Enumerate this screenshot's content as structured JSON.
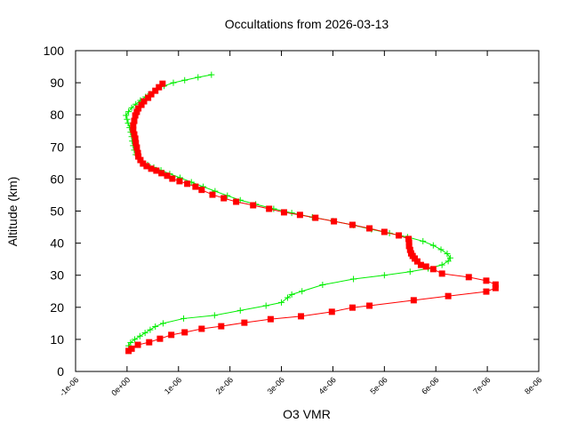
{
  "chart_data": {
    "type": "line",
    "title": "Occultations from 2026-03-13",
    "xlabel": "O3 VMR",
    "ylabel": "Altitude (km)",
    "xlim": [
      -1e-06,
      8e-06
    ],
    "ylim": [
      0,
      100
    ],
    "x_ticks": [
      "-1e-06",
      "0e+00",
      "1e-06",
      "2e-06",
      "3e-06",
      "4e-06",
      "5e-06",
      "6e-06",
      "7e-06",
      "8e-06"
    ],
    "x_tick_values": [
      -1e-06,
      0,
      1e-06,
      2e-06,
      3e-06,
      4e-06,
      5e-06,
      6e-06,
      7e-06,
      8e-06
    ],
    "y_ticks": [
      "0",
      "10",
      "20",
      "30",
      "40",
      "50",
      "60",
      "70",
      "80",
      "90",
      "100"
    ],
    "y_tick_values": [
      0,
      10,
      20,
      30,
      40,
      50,
      60,
      70,
      80,
      90,
      100
    ],
    "grid": false,
    "x_unit_scale": 1e-06,
    "series": [
      {
        "color": "#ff0000",
        "marker": "square",
        "x": [
          0.03,
          0.09,
          0.21,
          0.43,
          0.64,
          0.86,
          1.12,
          1.45,
          1.83,
          2.28,
          2.79,
          3.38,
          3.98,
          4.38,
          4.71,
          5.57,
          6.24,
          6.98,
          7.16,
          7.16,
          6.98,
          6.64,
          6.12,
          5.95,
          5.81,
          5.71,
          5.64,
          5.59,
          5.55,
          5.52,
          5.5,
          5.48,
          5.48,
          5.47,
          5.28,
          5.0,
          4.71,
          4.38,
          4.02,
          3.66,
          3.36,
          3.05,
          2.76,
          2.45,
          2.12,
          1.88,
          1.66,
          1.45,
          1.33,
          1.17,
          1.02,
          0.88,
          0.78,
          0.67,
          0.57,
          0.47,
          0.38,
          0.31,
          0.26,
          0.22,
          0.21,
          0.19,
          0.17,
          0.16,
          0.14,
          0.12,
          0.12,
          0.14,
          0.16,
          0.19,
          0.22,
          0.28,
          0.33,
          0.41,
          0.47,
          0.55,
          0.62,
          0.69
        ],
        "y": [
          6.4,
          7.1,
          8.3,
          9.1,
          10.2,
          11.4,
          12.2,
          13.3,
          14.1,
          15.2,
          16.3,
          17.2,
          18.6,
          19.9,
          20.5,
          22.2,
          23.5,
          24.9,
          26.0,
          27.1,
          28.3,
          29.4,
          30.5,
          31.9,
          32.7,
          33.2,
          34.3,
          35.2,
          36.0,
          36.8,
          37.9,
          39.1,
          40.2,
          41.3,
          42.4,
          43.5,
          44.6,
          45.7,
          46.8,
          47.9,
          48.8,
          49.6,
          50.7,
          51.8,
          52.9,
          54.0,
          55.1,
          56.6,
          57.6,
          58.5,
          59.3,
          60.1,
          61.0,
          61.8,
          62.6,
          63.2,
          64.0,
          64.8,
          65.9,
          67.0,
          68.1,
          69.8,
          71.2,
          72.6,
          73.9,
          75.3,
          76.7,
          78.1,
          79.8,
          80.9,
          82.0,
          83.1,
          84.2,
          85.3,
          86.4,
          87.5,
          88.6,
          89.7
        ]
      },
      {
        "color": "#00ee00",
        "marker": "plus",
        "x": [
          0.03,
          0.07,
          0.15,
          0.25,
          0.35,
          0.45,
          0.55,
          0.7,
          1.1,
          1.7,
          2.2,
          2.7,
          3.0,
          3.12,
          3.2,
          3.4,
          3.8,
          4.4,
          5.0,
          5.5,
          5.85,
          6.12,
          6.24,
          6.28,
          6.22,
          6.1,
          5.95,
          5.75,
          5.45,
          5.1,
          4.75,
          4.4,
          4.0,
          3.6,
          3.2,
          2.85,
          2.5,
          2.2,
          1.95,
          1.71,
          1.48,
          1.25,
          1.03,
          0.83,
          0.66,
          0.52,
          0.4,
          0.29,
          0.22,
          0.17,
          0.14,
          0.12,
          0.1,
          0.09,
          0.07,
          0.05,
          0.02,
          0.0,
          -0.02,
          0.03,
          0.09,
          0.17,
          0.26,
          0.36,
          0.45,
          0.58,
          0.72,
          0.9,
          1.12,
          1.38,
          1.64
        ],
        "y": [
          8.0,
          9.0,
          10.0,
          11.0,
          12.0,
          13.0,
          14.0,
          15.0,
          16.5,
          17.5,
          19.0,
          20.5,
          21.5,
          23.0,
          24.0,
          25.0,
          27.0,
          28.8,
          30.0,
          31.1,
          32.1,
          33.2,
          34.4,
          35.4,
          36.7,
          38.0,
          39.3,
          40.6,
          41.9,
          43.1,
          44.3,
          45.6,
          46.9,
          48.1,
          49.4,
          50.7,
          52.1,
          53.4,
          54.8,
          56.2,
          57.6,
          59.0,
          60.4,
          61.6,
          62.7,
          63.6,
          64.4,
          65.3,
          66.3,
          67.6,
          69.0,
          70.4,
          71.8,
          73.2,
          74.6,
          76.0,
          77.4,
          78.6,
          79.8,
          81.0,
          82.2,
          83.3,
          84.5,
          85.6,
          86.5,
          88.0,
          89.0,
          90.0,
          90.8,
          91.7,
          92.5
        ]
      }
    ]
  }
}
